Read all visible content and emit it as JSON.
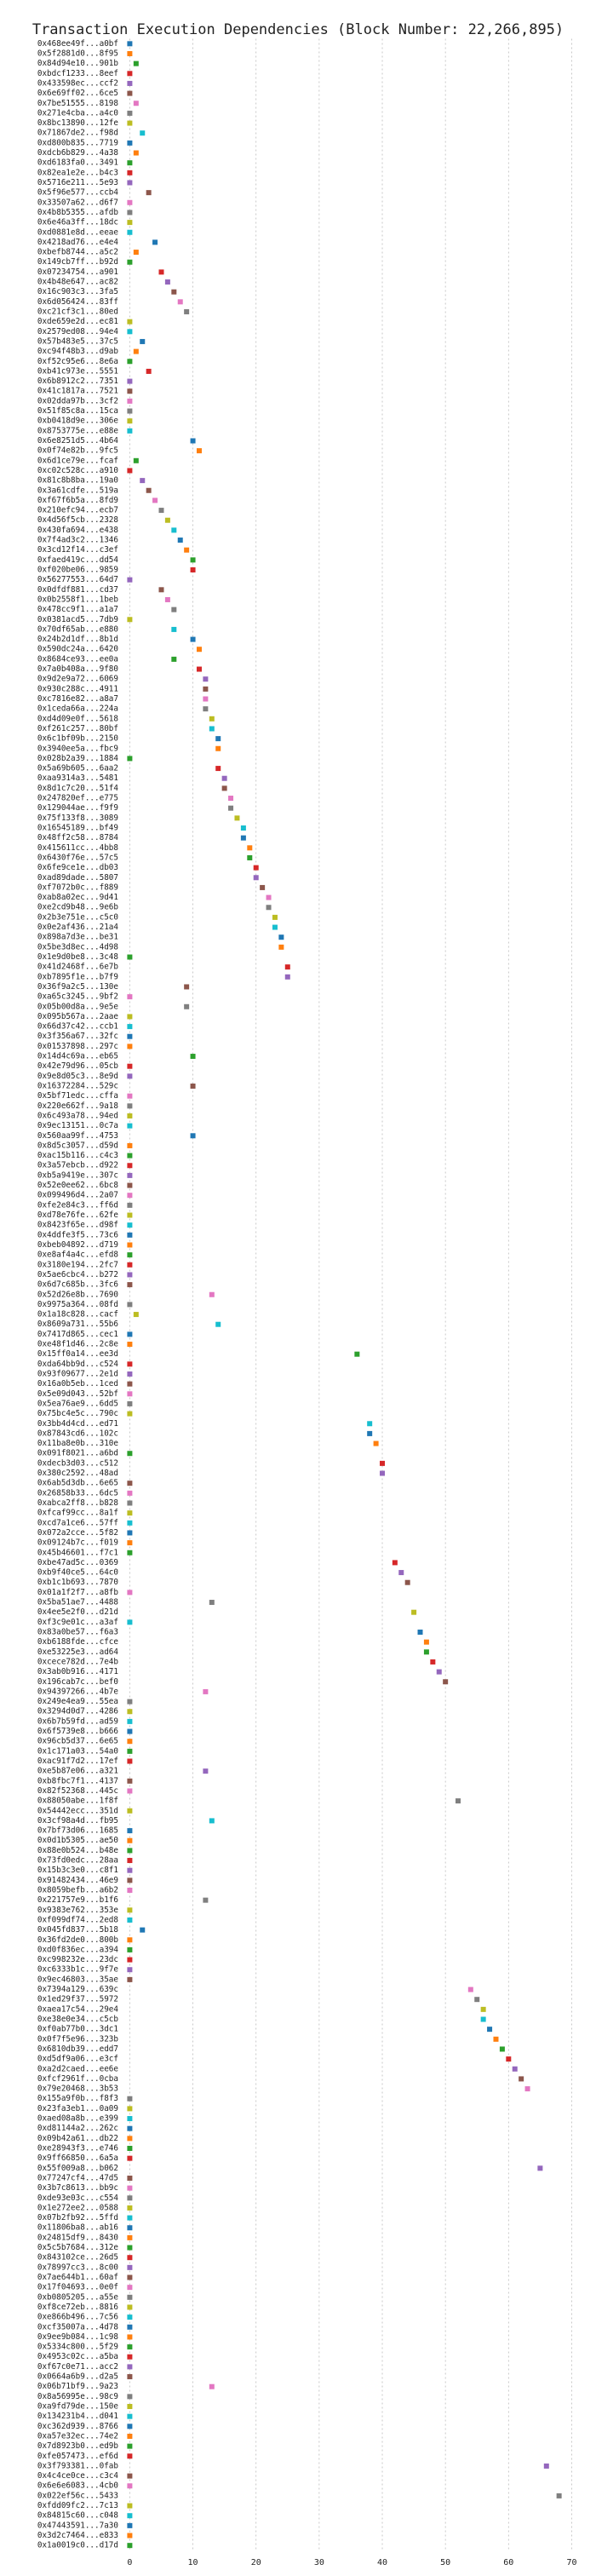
{
  "chart_data": {
    "type": "dot",
    "title": "Transaction Execution Dependencies (Block Number: 22,266,895)",
    "categories": [
      "0x468ee49f...a0bf",
      "0x5f2881d0...8f95",
      "0x84d94e10...901b",
      "0xbdcf1233...8eef",
      "0x433598ec...ccf2",
      "0x6e69ff02...6ce5",
      "0x7be51555...8198",
      "0x271e4cba...a4c0",
      "0x8bc13890...12fe",
      "0x71867de2...f98d",
      "0xd800b835...7719",
      "0xdcb6b829...4a38",
      "0xd6183fa0...3491",
      "0x82ea1e2e...b4c3",
      "0x5716e211...5e93",
      "0x5f96e577...ccb4",
      "0x33507a62...d6f7",
      "0x4b8b5355...afdb",
      "0x6e46a3ff...18dc",
      "0xd0881e8d...eeae",
      "0x4218ad76...e4e4",
      "0xbefb8744...a5c2",
      "0x149cb7ff...b92d",
      "0x07234754...a901",
      "0x4b48e647...ac82",
      "0x16c903c3...3fa5",
      "0x6d056424...83ff",
      "0xc21cf3c1...80ed",
      "0xde659e2d...ec81",
      "0x2579ed08...94e4",
      "0x57b483e5...37c5",
      "0xc94f48b3...d9ab",
      "0xf52c95e6...8e6a",
      "0xb41c973e...5551",
      "0x6b8912c2...7351",
      "0x41c1817a...7521",
      "0x02dda97b...3cf2",
      "0x51f85c8a...15ca",
      "0xb0418d9e...306e",
      "0x8753775e...e88e",
      "0x6e8251d5...4b64",
      "0x0f74e82b...9fc5",
      "0x6d1ce79e...fcaf",
      "0xc02c528c...a910",
      "0x81c8b8ba...19a0",
      "0x3a61cdfe...519a",
      "0xf67f6b5a...8fd9",
      "0x210efc94...ecb7",
      "0x4d56f5cb...2328",
      "0x430fa694...e438",
      "0x7f4ad3c2...1346",
      "0x3cd12f14...c3ef",
      "0xfaed419c...dd54",
      "0xf020be06...9859",
      "0x56277553...64d7",
      "0x0dfdf881...cd37",
      "0x0b2558f1...1beb",
      "0x478cc9f1...a1a7",
      "0x0381acd5...7db9",
      "0x70df65ab...e880",
      "0x24b2d1df...8b1d",
      "0x590dc24a...6420",
      "0x8684ce93...ee0a",
      "0x7a0b408a...9f80",
      "0x9d2e9a72...6069",
      "0x930c288c...4911",
      "0xc7816e82...a8a7",
      "0x1ceda66a...224a",
      "0xd4d09e0f...5618",
      "0xf261c257...80bf",
      "0x6c1bf09b...2150",
      "0x3940ee5a...fbc9",
      "0x028b2a39...1884",
      "0x5a69b605...6aa2",
      "0xaa9314a3...5481",
      "0x8d1c7c20...51f4",
      "0x247820ef...e775",
      "0x129044ae...f9f9",
      "0x75f133f8...3089",
      "0x16545189...bf49",
      "0x48ff2c58...8784",
      "0x415611cc...4bb8",
      "0x6430f76e...57c5",
      "0x6fe9ce1e...db03",
      "0xad89dade...5807",
      "0xf7072b0c...f889",
      "0xab8a02ec...9d41",
      "0xe2cd9b48...9e6b",
      "0x2b3e751e...c5c0",
      "0x0e2af436...21a4",
      "0x898a7d3e...be31",
      "0x5be3d8ec...4d98",
      "0x1e9d0be8...3c48",
      "0x41d2468f...6e7b",
      "0xb7895f1e...b7f9",
      "0x36f9a2c5...130e",
      "0xa65c3245...9bf2",
      "0x05b00d8a...9e5e",
      "0x095b567a...2aae",
      "0x66d37c42...ccb1",
      "0x3f356a67...32fc",
      "0x01537898...297c",
      "0x14d4c69a...eb65",
      "0x42e79d96...05cb",
      "0x9e8d05c3...8e9d",
      "0x16372284...529c",
      "0x5bf71edc...cffa",
      "0x220e662f...9a18",
      "0x6c493a78...94ed",
      "0x9ec13151...0c7a",
      "0x560aa99f...4753",
      "0x8d5c3057...d59d",
      "0xac15b116...c4c3",
      "0x3a57ebcb...d922",
      "0xb5a9419e...307c",
      "0x52e0ee62...6bc8",
      "0x099496d4...2a07",
      "0xfe2e84c3...ff6d",
      "0xd78e76fe...62fe",
      "0x8423f65e...d98f",
      "0x4ddfe3f5...73c6",
      "0xbeb04892...d719",
      "0xe8af4a4c...efd8",
      "0x3180e194...2fc7",
      "0x5ae6cbc4...b272",
      "0x6d7c685b...3fc6",
      "0x52d26e8b...7690",
      "0x9975a364...08fd",
      "0x1a18c828...cacf",
      "0x8609a731...55b6",
      "0x7417d865...cec1",
      "0xe48f1d46...2c8e",
      "0x15ff0a14...ee3d",
      "0xda64bb9d...c524",
      "0x93f09677...2e1d",
      "0x16a0b5eb...1ced",
      "0x5e09d043...52bf",
      "0x5ea76ae9...6dd5",
      "0x75bc4e5c...790c",
      "0x3bb4d4cd...ed71",
      "0x87843cd6...102c",
      "0x11ba8e0b...310e",
      "0x091f8021...a6bd",
      "0xdecb3d03...c512",
      "0x380c2592...48ad",
      "0x6ab5d3db...6e65",
      "0x26858b33...6dc5",
      "0xabca2ff8...b828",
      "0xfcaf99cc...8a1f",
      "0xcd7a1ce6...57ff",
      "0x072a2cce...5f82",
      "0x09124b7c...f019",
      "0x45b46601...f7c1",
      "0xbe47ad5c...0369",
      "0xb9f40ce5...64c0",
      "0xb1c1b693...7870",
      "0x01a1f2f7...a8fb",
      "0x5ba51ae7...4488",
      "0x4ee5e2f0...d21d",
      "0xf3c9e01c...a3af",
      "0x83a0be57...f6a3",
      "0xb6188fde...cfce",
      "0xe53225e3...ad64",
      "0xcece782d...7e4b",
      "0x3ab0b916...4171",
      "0x196cab7c...bef0",
      "0x94397266...4b7e",
      "0x249e4ea9...55ea",
      "0x3294d0d7...4286",
      "0x6b7b59fd...ad59",
      "0x6f5739e8...b666",
      "0x96cb5d37...6e65",
      "0x1c171a03...54a0",
      "0xac91f7d2...17ef",
      "0xe5b87e06...a321",
      "0xb8fbc7f1...4137",
      "0x82f52368...445c",
      "0x88050abe...1f8f",
      "0x54442ecc...351d",
      "0x3cf98a4d...fb95",
      "0x7bf73d06...1685",
      "0x0d1b5305...ae50",
      "0x88e0b524...b48e",
      "0x73fd0edc...28aa",
      "0x15b3c3e0...c8f1",
      "0x91482434...46e9",
      "0x8059befb...a6b2",
      "0x221757e9...b1f6",
      "0x9383e762...353e",
      "0xf099df74...2ed8",
      "0x045fd837...5b18",
      "0x36fd2de0...800b",
      "0xd0f836ec...a394",
      "0xc998232e...23dc",
      "0xc6333b1c...9f7e",
      "0x9ec46803...35ae",
      "0x7394a129...639c",
      "0x1ed29f37...5972",
      "0xaea17c54...29e4",
      "0xe38e0e34...c5cb",
      "0xf0ab77b0...3dc1",
      "0x0f7f5e96...323b",
      "0x6810db39...edd7",
      "0xd5df9a06...e3cf",
      "0xa2d2caed...ee6e",
      "0xfcf2961f...0cba",
      "0x79e20468...3b53",
      "0x155a9f0b...f8f3",
      "0x23fa3eb1...0a09",
      "0xaed08a8b...e399",
      "0xd81144a2...262c",
      "0x09b42a61...db22",
      "0xe28943f3...e746",
      "0x9ff66850...6a5a",
      "0x55f009a8...b062",
      "0x77247cf4...47d5",
      "0x3b7c8613...bb9c",
      "0xde93e03c...c554",
      "0x1e272ee2...0588",
      "0x07b2fb92...5ffd",
      "0x11806ba8...ab16",
      "0x24815df9...8430",
      "0x5c5b7684...312e",
      "0x843102ce...26d5",
      "0x78997cc3...8c00",
      "0x7ae644b1...60af",
      "0x17f04693...0e0f",
      "0xb0805205...a55e",
      "0xf8ce72eb...8816",
      "0xe866b496...7c56",
      "0xcf35007a...4d78",
      "0x9ee9b084...1c98",
      "0x5334c800...5f29",
      "0x4953c02c...a5ba",
      "0xf67c0e71...acc2",
      "0x0664a6b9...d2a5",
      "0x06b71bf9...9a23",
      "0x8a56995e...98c9",
      "0xa9fd79de...150e",
      "0x134231b4...d041",
      "0xc362d939...8766",
      "0xa57e32ec...74e2",
      "0x7d8923b0...ed9b",
      "0xfe057473...ef6d",
      "0x3f793381...0fab",
      "0x4c4ce0ce...c3c4",
      "0x6e6e6083...4cb0",
      "0x022ef56c...5433",
      "0xfdd09fc2...7c13",
      "0x84815c60...c048",
      "0x47443591...7a30",
      "0x3d2c7464...e833",
      "0x1a0019c0...d17d"
    ],
    "values": [
      0,
      0,
      1,
      0,
      0,
      0,
      1,
      0,
      0,
      2,
      0,
      1,
      0,
      0,
      0,
      3,
      0,
      0,
      0,
      0,
      4,
      1,
      0,
      5,
      6,
      7,
      8,
      9,
      0,
      0,
      2,
      1,
      0,
      3,
      0,
      0,
      0,
      0,
      0,
      0,
      10,
      11,
      1,
      0,
      2,
      3,
      4,
      5,
      6,
      7,
      8,
      9,
      10,
      10,
      0,
      5,
      6,
      7,
      0,
      7,
      10,
      11,
      7,
      11,
      12,
      12,
      12,
      12,
      13,
      13,
      14,
      14,
      0,
      14,
      15,
      15,
      16,
      16,
      17,
      18,
      18,
      19,
      19,
      20,
      20,
      21,
      22,
      22,
      23,
      23,
      24,
      24,
      0,
      25,
      25,
      9,
      0,
      9,
      0,
      0,
      0,
      0,
      10,
      0,
      0,
      10,
      0,
      0,
      0,
      0,
      10,
      0,
      0,
      0,
      0,
      0,
      0,
      0,
      0,
      0,
      0,
      0,
      0,
      0,
      0,
      0,
      13,
      0,
      1,
      14,
      0,
      0,
      36,
      0,
      0,
      0,
      0,
      0,
      0,
      38,
      38,
      39,
      0,
      40,
      40,
      0,
      0,
      0,
      0,
      0,
      0,
      0,
      0,
      42,
      43,
      44,
      0,
      13,
      45,
      0,
      46,
      47,
      47,
      48,
      49,
      50,
      12,
      0,
      0,
      0,
      0,
      0,
      0,
      0,
      12,
      0,
      0,
      52,
      0,
      13,
      0,
      0,
      0,
      0,
      0,
      0,
      0,
      12,
      0,
      0,
      2,
      0,
      0,
      0,
      0,
      0,
      54,
      55,
      56,
      56,
      57,
      58,
      59,
      60,
      61,
      62,
      63,
      0,
      0,
      0,
      0,
      0,
      0,
      0,
      65,
      0,
      0,
      0,
      0,
      0,
      0,
      0,
      0,
      0,
      0,
      0,
      0,
      0,
      0,
      0,
      0,
      0,
      0,
      0,
      0,
      0,
      13,
      0,
      0,
      0,
      0,
      0,
      0,
      0,
      66,
      0,
      0,
      68,
      0,
      0,
      0,
      0,
      0
    ],
    "palette": [
      "#1f77b4",
      "#ff7f0e",
      "#2ca02c",
      "#d62728",
      "#9467bd",
      "#8c564b",
      "#e377c2",
      "#7f7f7f",
      "#bcbd22",
      "#17becf"
    ],
    "xlim": [
      -1,
      72.5
    ],
    "xticks": [
      0,
      10,
      20,
      30,
      40,
      50,
      60,
      70
    ],
    "grid": true
  }
}
